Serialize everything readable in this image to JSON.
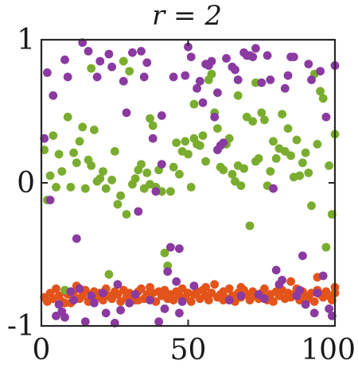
{
  "chart_data": {
    "type": "scatter",
    "title": "r = 2",
    "xlabel": "",
    "ylabel": "",
    "xlim": [
      0,
      100
    ],
    "ylim": [
      -1,
      1
    ],
    "x_ticks": [
      0,
      50,
      100
    ],
    "x_tick_labels": [
      "0",
      "50",
      "100"
    ],
    "y_ticks": [
      -1,
      0,
      1
    ],
    "y_tick_labels": [
      "-1",
      "0",
      "1"
    ],
    "grid": false,
    "legend": "none",
    "series": [
      {
        "color": "#e3541b",
        "points": [
          [
            1,
            -0.8
          ],
          [
            2,
            -0.83
          ],
          [
            3,
            -0.77
          ],
          [
            4,
            -0.81
          ],
          [
            5,
            -0.74
          ],
          [
            6,
            -0.79
          ],
          [
            7,
            -0.83
          ],
          [
            8,
            -0.76
          ],
          [
            9,
            -0.78
          ],
          [
            10,
            -0.84
          ],
          [
            11,
            -0.77
          ],
          [
            12,
            -0.72
          ],
          [
            13,
            -0.81
          ],
          [
            14,
            -0.79
          ],
          [
            15,
            -0.75
          ],
          [
            16,
            -0.83
          ],
          [
            17,
            -0.78
          ],
          [
            18,
            -0.76
          ],
          [
            19,
            -0.8
          ],
          [
            20,
            -0.77
          ],
          [
            21,
            -0.82
          ],
          [
            22,
            -0.74
          ],
          [
            23,
            -0.79
          ],
          [
            24,
            -0.81
          ],
          [
            25,
            -0.76
          ],
          [
            26,
            -0.78
          ],
          [
            27,
            -0.83
          ],
          [
            28,
            -0.75
          ],
          [
            29,
            -0.8
          ],
          [
            30,
            -0.77
          ],
          [
            31,
            -0.79
          ],
          [
            32,
            -0.82
          ],
          [
            33,
            -0.76
          ],
          [
            34,
            -0.74
          ],
          [
            35,
            -0.81
          ],
          [
            36,
            -0.78
          ],
          [
            37,
            -0.8
          ],
          [
            38,
            -0.77
          ],
          [
            39,
            -0.83
          ],
          [
            40,
            -0.76
          ],
          [
            41,
            -0.79
          ],
          [
            42,
            -0.75
          ],
          [
            43,
            -0.81
          ],
          [
            44,
            -0.78
          ],
          [
            45,
            -0.82
          ],
          [
            46,
            -0.76
          ],
          [
            47,
            -0.79
          ],
          [
            48,
            -0.74
          ],
          [
            49,
            -0.8
          ],
          [
            50,
            -0.77
          ],
          [
            51,
            -0.83
          ],
          [
            52,
            -0.78
          ],
          [
            53,
            -0.76
          ],
          [
            54,
            -0.81
          ],
          [
            55,
            -0.75
          ],
          [
            56,
            -0.79
          ],
          [
            57,
            -0.82
          ],
          [
            58,
            -0.77
          ],
          [
            59,
            -0.71
          ],
          [
            60,
            -0.8
          ],
          [
            61,
            -0.78
          ],
          [
            62,
            -0.76
          ],
          [
            63,
            -0.81
          ],
          [
            64,
            -0.74
          ],
          [
            65,
            -0.79
          ],
          [
            66,
            -0.83
          ],
          [
            67,
            -0.77
          ],
          [
            68,
            -0.8
          ],
          [
            69,
            -0.75
          ],
          [
            70,
            -0.78
          ],
          [
            71,
            -0.82
          ],
          [
            72,
            -0.76
          ],
          [
            73,
            -0.79
          ],
          [
            74,
            -0.81
          ],
          [
            75,
            -0.77
          ],
          [
            76,
            -0.74
          ],
          [
            77,
            -0.8
          ],
          [
            78,
            -0.78
          ],
          [
            79,
            -0.83
          ],
          [
            80,
            -0.76
          ],
          [
            81,
            -0.79
          ],
          [
            82,
            -0.75
          ],
          [
            83,
            -0.81
          ],
          [
            84,
            -0.77
          ],
          [
            85,
            -0.8
          ],
          [
            86,
            -0.78
          ],
          [
            87,
            -0.74
          ],
          [
            88,
            -0.82
          ],
          [
            89,
            -0.76
          ],
          [
            90,
            -0.79
          ],
          [
            91,
            -0.81
          ],
          [
            92,
            -0.77
          ],
          [
            93,
            -0.83
          ],
          [
            94,
            -0.75
          ],
          [
            95,
            -0.78
          ],
          [
            96,
            -0.8
          ],
          [
            97,
            -0.76
          ],
          [
            98,
            -0.79
          ],
          [
            99,
            -0.82
          ],
          [
            100,
            -0.77
          ],
          [
            94,
            -0.66
          ],
          [
            100,
            -0.73
          ],
          [
            56,
            -0.73
          ],
          [
            37,
            -0.73
          ],
          [
            68,
            -0.73
          ],
          [
            85,
            -0.69
          ],
          [
            8,
            -0.84
          ],
          [
            62,
            -0.82
          ],
          [
            33,
            -0.82
          ],
          [
            77,
            -0.82
          ]
        ]
      },
      {
        "color": "#7aad2f",
        "points": [
          [
            1,
            0.23
          ],
          [
            2,
            -0.12
          ],
          [
            3,
            0.05
          ],
          [
            4,
            0.33
          ],
          [
            5,
            -0.03
          ],
          [
            6,
            0.2
          ],
          [
            7,
            0.08
          ],
          [
            8,
            -0.75
          ],
          [
            9,
            0.46
          ],
          [
            10,
            -0.03
          ],
          [
            11,
            0.21
          ],
          [
            12,
            0.14
          ],
          [
            13,
            0.29
          ],
          [
            14,
            0.39
          ],
          [
            15,
            -0.04
          ],
          [
            16,
            0.16
          ],
          [
            17,
            0.12
          ],
          [
            18,
            0.37
          ],
          [
            19,
            0.01
          ],
          [
            20,
            0.03
          ],
          [
            21,
            0.08
          ],
          [
            22,
            -0.04
          ],
          [
            23,
            -0.64
          ],
          [
            24,
            0.02
          ],
          [
            25,
            0.22
          ],
          [
            26,
            -0.15
          ],
          [
            27,
            -0.09
          ],
          [
            28,
            0.85
          ],
          [
            29,
            -0.22
          ],
          [
            30,
            0.78
          ],
          [
            31,
            -0.01
          ],
          [
            32,
            0.03
          ],
          [
            33,
            0.09
          ],
          [
            34,
            0.13
          ],
          [
            35,
            -0.04
          ],
          [
            36,
            0.07
          ],
          [
            37,
            -0.01
          ],
          [
            38,
            0.4
          ],
          [
            39,
            -0.03
          ],
          [
            40,
            0.09
          ],
          [
            41,
            -0.06
          ],
          [
            42,
            -0.49
          ],
          [
            43,
            -0.58
          ],
          [
            44,
            -0.06
          ],
          [
            45,
            0.11
          ],
          [
            46,
            0.28
          ],
          [
            47,
            0.06
          ],
          [
            48,
            0.22
          ],
          [
            49,
            0.29
          ],
          [
            50,
            0.2
          ],
          [
            51,
            -0.03
          ],
          [
            52,
            0.31
          ],
          [
            53,
            0.27
          ],
          [
            54,
            0.26
          ],
          [
            55,
            0.33
          ],
          [
            56,
            0.15
          ],
          [
            57,
            0.72
          ],
          [
            58,
            0.76
          ],
          [
            59,
            0.49
          ],
          [
            60,
            0.38
          ],
          [
            61,
            0.11
          ],
          [
            62,
            0.09
          ],
          [
            63,
            0.27
          ],
          [
            64,
            0.31
          ],
          [
            65,
            0.06
          ],
          [
            66,
            0.01
          ],
          [
            67,
            0.12
          ],
          [
            68,
            -0.02
          ],
          [
            69,
            0.1
          ],
          [
            70,
            0.46
          ],
          [
            71,
            -0.3
          ],
          [
            72,
            0.43
          ],
          [
            73,
            0.15
          ],
          [
            74,
            0.17
          ],
          [
            75,
            0.49
          ],
          [
            76,
            0.44
          ],
          [
            77,
            -0.02
          ],
          [
            78,
            0.08
          ],
          [
            79,
            0.29
          ],
          [
            80,
            0.17
          ],
          [
            81,
            0.24
          ],
          [
            82,
            0.48
          ],
          [
            83,
            0.22
          ],
          [
            84,
            0.38
          ],
          [
            85,
            0.19
          ],
          [
            86,
            0.04
          ],
          [
            87,
            0.3
          ],
          [
            88,
            0.05
          ],
          [
            89,
            0.14
          ],
          [
            90,
            0.21
          ],
          [
            91,
            0.07
          ],
          [
            92,
            -0.16
          ],
          [
            93,
            0.76
          ],
          [
            94,
            0.27
          ],
          [
            95,
            0.64
          ],
          [
            96,
            0.59
          ],
          [
            97,
            -0.45
          ],
          [
            98,
            0.12
          ],
          [
            99,
            -0.22
          ],
          [
            100,
            0.34
          ],
          [
            37,
            0.45
          ],
          [
            73,
            0.7
          ],
          [
            52,
            0.55
          ],
          [
            17,
            0.8
          ],
          [
            67,
            0.61
          ]
        ]
      },
      {
        "color": "#8a3aa0",
        "points": [
          [
            1,
            0.31
          ],
          [
            2,
            0.77
          ],
          [
            3,
            -0.12
          ],
          [
            4,
            0.61
          ],
          [
            5,
            -0.93
          ],
          [
            6,
            -0.85
          ],
          [
            7,
            -0.9
          ],
          [
            8,
            -0.94
          ],
          [
            9,
            0.74
          ],
          [
            10,
            -0.76
          ],
          [
            11,
            -0.82
          ],
          [
            12,
            -0.39
          ],
          [
            13,
            -0.74
          ],
          [
            14,
            0.98
          ],
          [
            15,
            -0.97
          ],
          [
            16,
            0.92
          ],
          [
            17,
            -0.79
          ],
          [
            18,
            -0.84
          ],
          [
            19,
            0.74
          ],
          [
            20,
            0.85
          ],
          [
            21,
            -0.77
          ],
          [
            22,
            -0.91
          ],
          [
            23,
            0.9
          ],
          [
            24,
            0.81
          ],
          [
            25,
            -0.98
          ],
          [
            26,
            -0.71
          ],
          [
            27,
            -0.89
          ],
          [
            28,
            0.71
          ],
          [
            29,
            0.49
          ],
          [
            30,
            -0.84
          ],
          [
            31,
            0.91
          ],
          [
            32,
            -0.78
          ],
          [
            33,
            -0.2
          ],
          [
            34,
            0.92
          ],
          [
            35,
            0.74
          ],
          [
            36,
            0.84
          ],
          [
            37,
            -0.82
          ],
          [
            38,
            0.31
          ],
          [
            39,
            -0.06
          ],
          [
            40,
            -0.97
          ],
          [
            41,
            0.13
          ],
          [
            42,
            -0.88
          ],
          [
            43,
            -0.62
          ],
          [
            44,
            -0.45
          ],
          [
            45,
            0.74
          ],
          [
            46,
            -0.69
          ],
          [
            47,
            -0.91
          ],
          [
            48,
            -0.83
          ],
          [
            49,
            0.75
          ],
          [
            50,
            0.95
          ],
          [
            51,
            0.88
          ],
          [
            52,
            -0.72
          ],
          [
            53,
            0.66
          ],
          [
            54,
            0.71
          ],
          [
            55,
            0.56
          ],
          [
            56,
            0.83
          ],
          [
            57,
            0.82
          ],
          [
            58,
            0.85
          ],
          [
            59,
            0.46
          ],
          [
            60,
            0.63
          ],
          [
            61,
            0.26
          ],
          [
            62,
            0.28
          ],
          [
            63,
            0.87
          ],
          [
            64,
            -0.82
          ],
          [
            65,
            0.81
          ],
          [
            66,
            0.79
          ],
          [
            67,
            0.72
          ],
          [
            68,
            -0.79
          ],
          [
            69,
            0.91
          ],
          [
            70,
            0.89
          ],
          [
            71,
            0.89
          ],
          [
            72,
            0.88
          ],
          [
            73,
            0.94
          ],
          [
            74,
            -0.78
          ],
          [
            75,
            0.7
          ],
          [
            76,
            -0.81
          ],
          [
            77,
            0.89
          ],
          [
            78,
            0.72
          ],
          [
            79,
            -0.04
          ],
          [
            80,
            -0.61
          ],
          [
            81,
            -0.71
          ],
          [
            82,
            -0.68
          ],
          [
            83,
            0.66
          ],
          [
            84,
            0.75
          ],
          [
            85,
            0.88
          ],
          [
            86,
            0.88
          ],
          [
            87,
            -0.79
          ],
          [
            88,
            -0.75
          ],
          [
            89,
            -0.51
          ],
          [
            90,
            -0.85
          ],
          [
            91,
            0.83
          ],
          [
            92,
            0.72
          ],
          [
            93,
            -0.91
          ],
          [
            94,
            -0.77
          ],
          [
            95,
            0.78
          ],
          [
            96,
            -0.65
          ],
          [
            97,
            0.46
          ],
          [
            98,
            -0.88
          ],
          [
            99,
            -0.93
          ],
          [
            100,
            0.82
          ],
          [
            8,
            0.86
          ],
          [
            47,
            -0.46
          ],
          [
            41,
            0.47
          ],
          [
            60,
            0.23
          ]
        ]
      }
    ]
  }
}
